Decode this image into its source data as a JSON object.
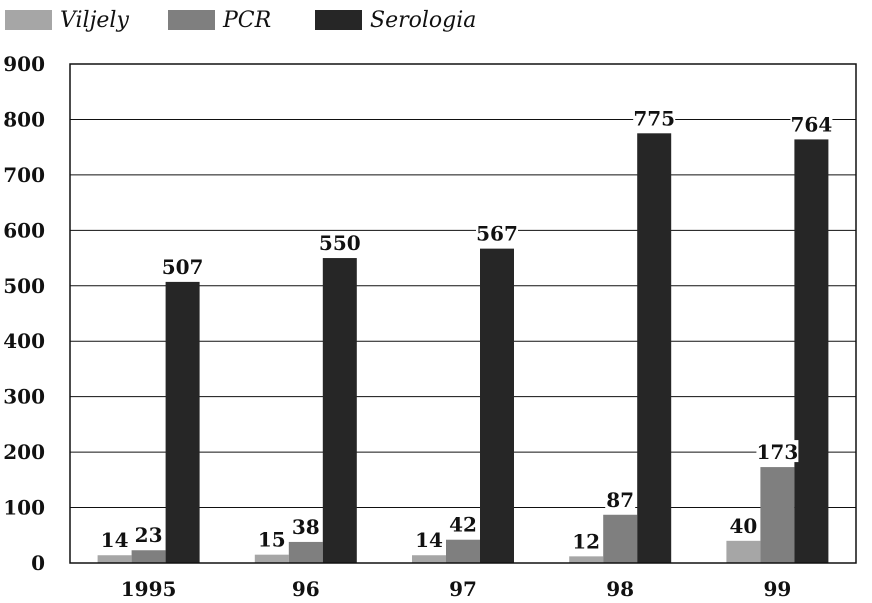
{
  "chart_data": {
    "type": "bar",
    "categories": [
      "1995",
      "96",
      "97",
      "98",
      "99"
    ],
    "series": [
      {
        "name": "Viljely",
        "values": [
          14,
          15,
          14,
          12,
          40
        ],
        "color": "#a6a6a6"
      },
      {
        "name": "PCR",
        "values": [
          23,
          38,
          42,
          87,
          173
        ],
        "color": "#7f7f7f"
      },
      {
        "name": "Serologia",
        "values": [
          507,
          550,
          567,
          775,
          764
        ],
        "color": "#262626"
      }
    ],
    "ylim": [
      0,
      900
    ],
    "yticks": [
      0,
      100,
      200,
      300,
      400,
      500,
      600,
      700,
      800,
      900
    ],
    "grid": true,
    "legend_position": "top-left",
    "data_labels": true
  }
}
